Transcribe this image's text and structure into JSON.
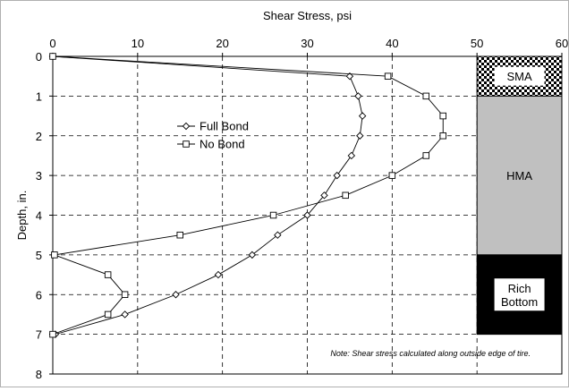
{
  "chart_data": {
    "type": "line",
    "title": "",
    "xlabel": "Shear Stress, psi",
    "ylabel": "Depth, in.",
    "xlim": [
      0,
      60
    ],
    "ylim": [
      0,
      8
    ],
    "x_axis_position": "top",
    "y_axis_inverted": true,
    "grid": true,
    "grid_style": "dashed",
    "x_ticks": [
      "0",
      "10",
      "20",
      "30",
      "40",
      "50",
      "60"
    ],
    "y_ticks": [
      "0",
      "1",
      "2",
      "3",
      "4",
      "5",
      "6",
      "7",
      "8"
    ],
    "legend": {
      "placement": "upper-middle",
      "entries": [
        "Full Bond",
        "No Bond"
      ]
    },
    "series": [
      {
        "name": "Full Bond",
        "marker": "diamond",
        "color": "#000000",
        "points": [
          {
            "x": 0,
            "y": 0
          },
          {
            "x": 35,
            "y": 0.5
          },
          {
            "x": 36,
            "y": 1.0
          },
          {
            "x": 36.5,
            "y": 1.5
          },
          {
            "x": 36.2,
            "y": 2.0
          },
          {
            "x": 35.2,
            "y": 2.5
          },
          {
            "x": 33.5,
            "y": 3.0
          },
          {
            "x": 32,
            "y": 3.5
          },
          {
            "x": 30,
            "y": 4.0
          },
          {
            "x": 26.5,
            "y": 4.5
          },
          {
            "x": 23.5,
            "y": 5.0
          },
          {
            "x": 19.5,
            "y": 5.5
          },
          {
            "x": 14.5,
            "y": 6.0
          },
          {
            "x": 8.5,
            "y": 6.5
          },
          {
            "x": 0.3,
            "y": 7.0
          }
        ]
      },
      {
        "name": "No Bond",
        "marker": "square",
        "color": "#000000",
        "points": [
          {
            "x": 0,
            "y": 0
          },
          {
            "x": 39.5,
            "y": 0.5
          },
          {
            "x": 44,
            "y": 1.0
          },
          {
            "x": 46,
            "y": 1.5
          },
          {
            "x": 46,
            "y": 2.0
          },
          {
            "x": 44,
            "y": 2.5
          },
          {
            "x": 40,
            "y": 3.0
          },
          {
            "x": 34.5,
            "y": 3.5
          },
          {
            "x": 26,
            "y": 4.0
          },
          {
            "x": 15,
            "y": 4.5
          },
          {
            "x": 0.2,
            "y": 5.0
          },
          {
            "x": 6.5,
            "y": 5.5
          },
          {
            "x": 8.5,
            "y": 6.0
          },
          {
            "x": 6.5,
            "y": 6.5
          },
          {
            "x": 0,
            "y": 7.0
          }
        ]
      }
    ],
    "layers": [
      {
        "label": [
          "SMA"
        ],
        "from": 0,
        "to": 1,
        "fill": "checker"
      },
      {
        "label": [
          "HMA"
        ],
        "from": 1,
        "to": 5,
        "fill": "#c0c0c0"
      },
      {
        "label": [
          "Rich",
          "Bottom"
        ],
        "from": 5,
        "to": 7,
        "fill": "#000000"
      }
    ],
    "layers_x_range": [
      50,
      60
    ],
    "annotation": "Note:  Shear stress calculated along outside edge of tire."
  }
}
